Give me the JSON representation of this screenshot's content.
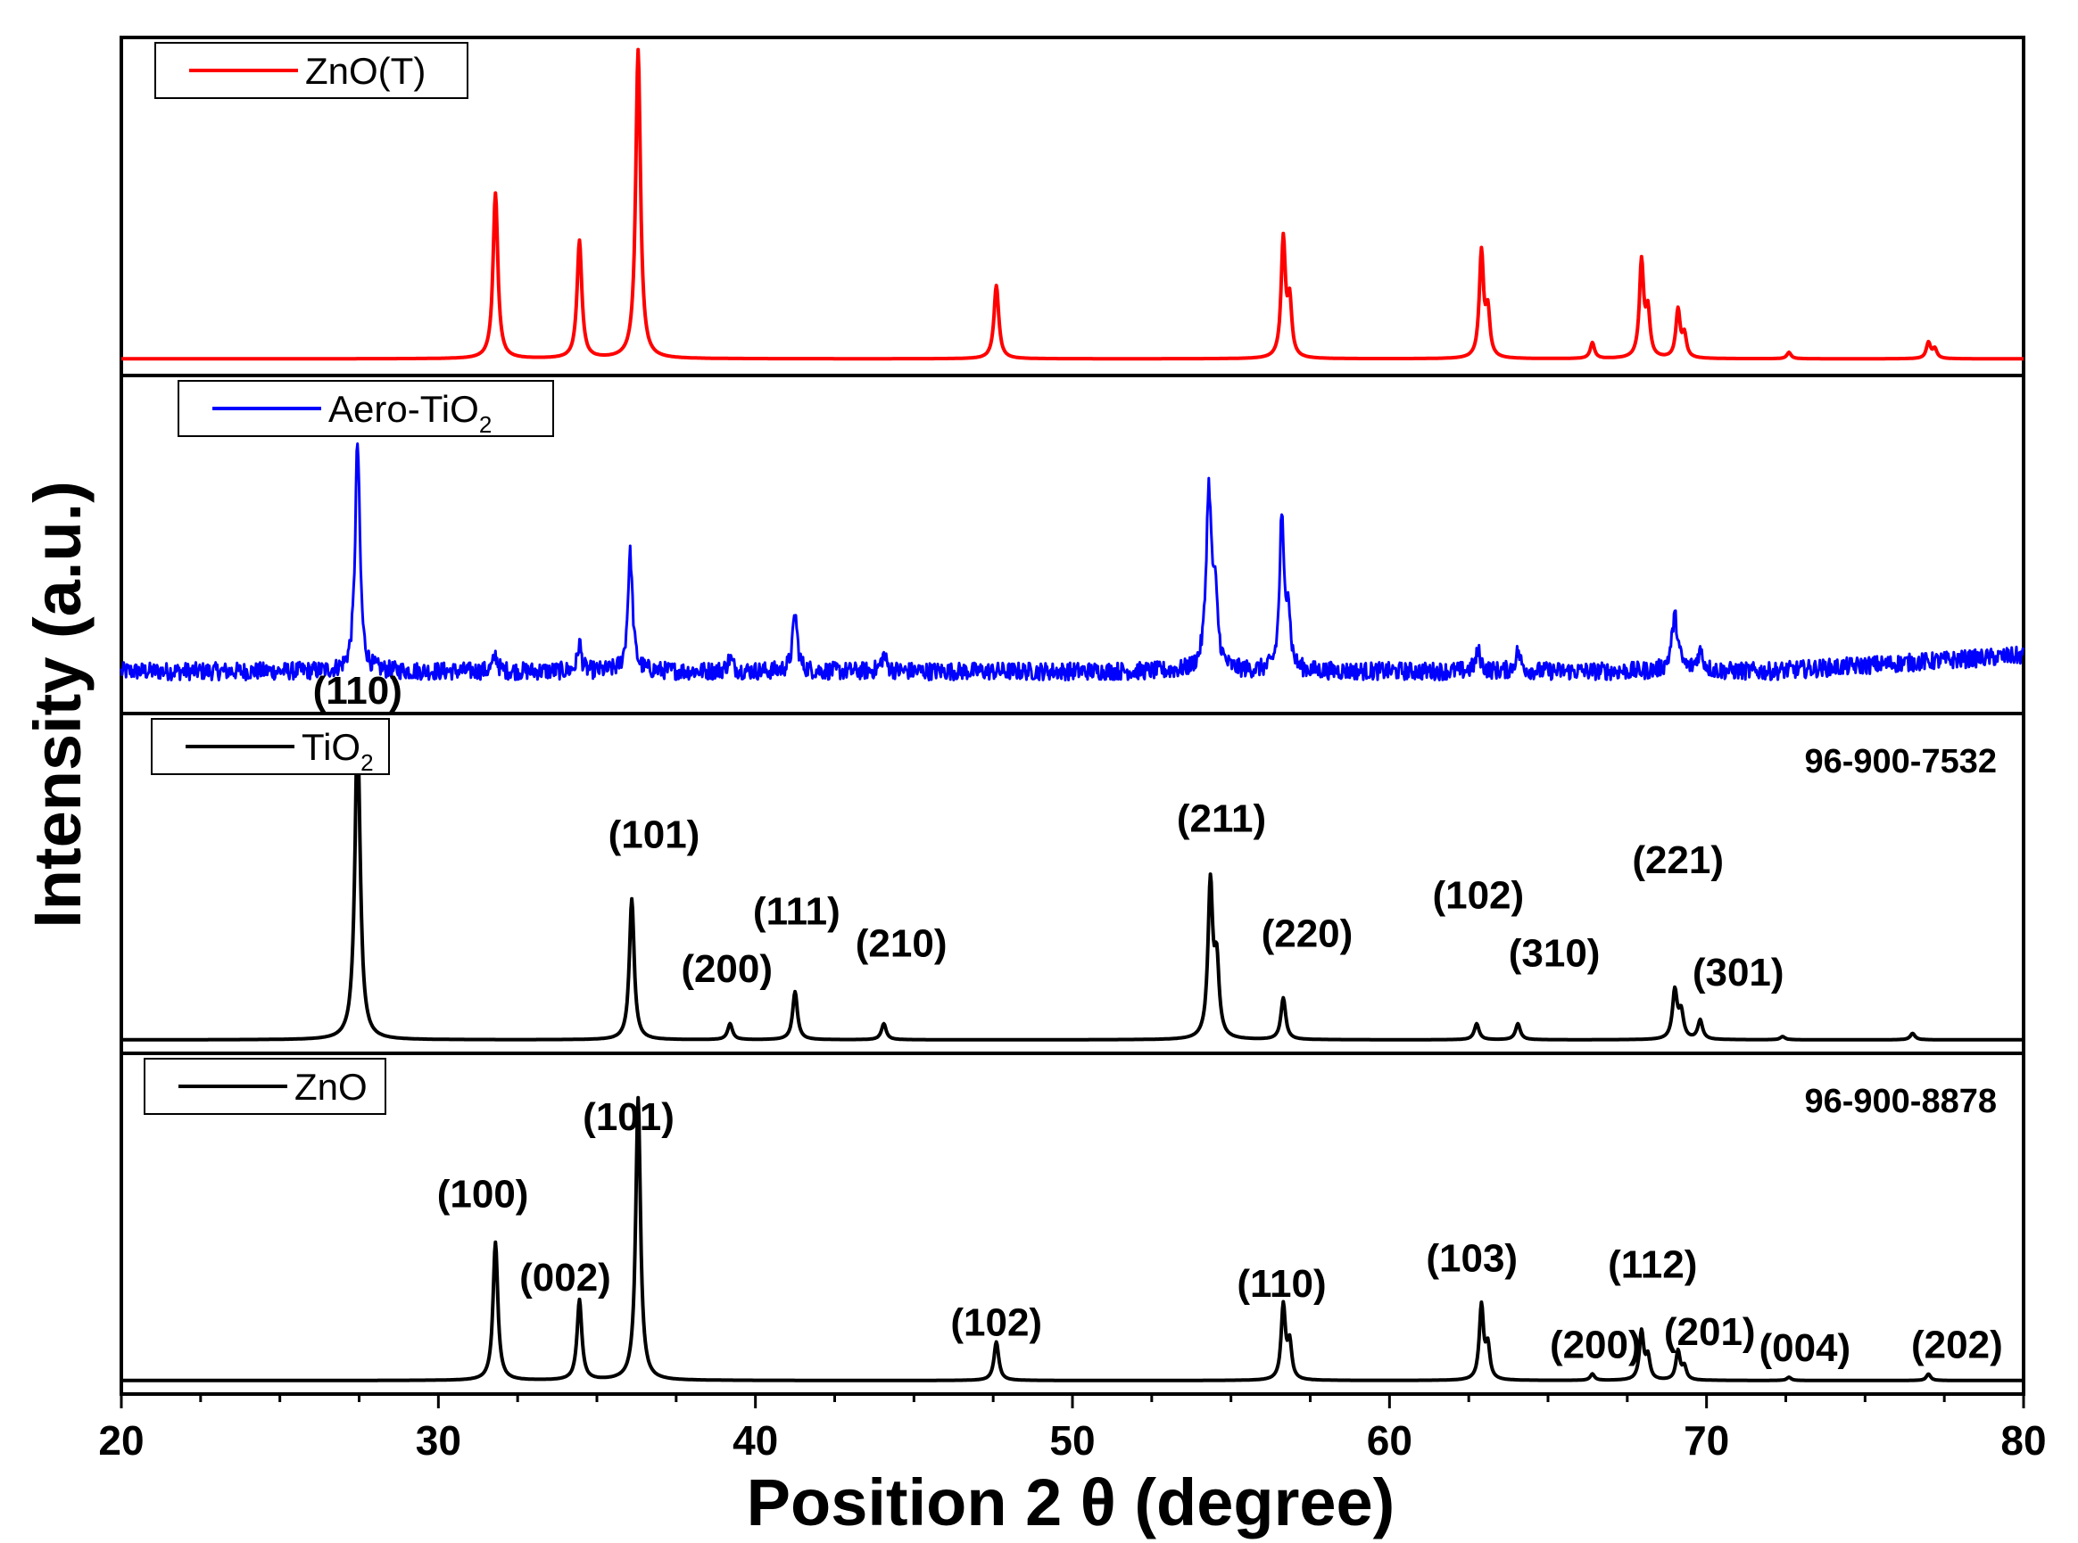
{
  "chart_data": {
    "type": "line",
    "title": "",
    "xlabel": "Position 2 θ (degree)",
    "ylabel": "Intensity (a.u.)",
    "xlim": [
      20,
      80
    ],
    "x_ticks": [
      20,
      30,
      40,
      50,
      60,
      70,
      80
    ],
    "x_minor_step": 2.5,
    "grid": false,
    "y_ticks_shown": false,
    "panels": [
      {
        "name": "ZnO(T)",
        "legend": "ZnO(T)",
        "color": "#ff0000",
        "reference_code": "",
        "noise": 0,
        "baseline": 0.03,
        "peaks": [
          {
            "x": 31.8,
            "h": 0.52,
            "w": 0.09
          },
          {
            "x": 34.45,
            "h": 0.37,
            "w": 0.09
          },
          {
            "x": 36.3,
            "h": 0.97,
            "w": 0.09
          },
          {
            "x": 47.6,
            "h": 0.23,
            "w": 0.09
          },
          {
            "x": 56.65,
            "h": 0.37,
            "w": 0.08
          },
          {
            "x": 56.85,
            "h": 0.17,
            "w": 0.08
          },
          {
            "x": 62.9,
            "h": 0.33,
            "w": 0.08
          },
          {
            "x": 63.1,
            "h": 0.14,
            "w": 0.08
          },
          {
            "x": 66.4,
            "h": 0.05,
            "w": 0.08
          },
          {
            "x": 67.95,
            "h": 0.3,
            "w": 0.08
          },
          {
            "x": 68.15,
            "h": 0.14,
            "w": 0.08
          },
          {
            "x": 69.1,
            "h": 0.15,
            "w": 0.08
          },
          {
            "x": 69.3,
            "h": 0.07,
            "w": 0.08
          },
          {
            "x": 72.6,
            "h": 0.02,
            "w": 0.08
          },
          {
            "x": 77.0,
            "h": 0.05,
            "w": 0.08
          },
          {
            "x": 77.2,
            "h": 0.03,
            "w": 0.08
          }
        ],
        "hkl_labels": []
      },
      {
        "name": "Aero-TiO2",
        "legend": "Aero-TiO",
        "legend_sub": "2",
        "color": "#0000ff",
        "reference_code": "",
        "noise": 0.028,
        "baseline": 0.11,
        "baseline_end": 0.16,
        "peaks": [
          {
            "x": 27.45,
            "h": 0.72,
            "w": 0.09
          },
          {
            "x": 31.8,
            "h": 0.05,
            "w": 0.08
          },
          {
            "x": 34.45,
            "h": 0.09,
            "w": 0.07
          },
          {
            "x": 36.05,
            "h": 0.37,
            "w": 0.09
          },
          {
            "x": 39.2,
            "h": 0.04,
            "w": 0.1
          },
          {
            "x": 41.25,
            "h": 0.18,
            "w": 0.09
          },
          {
            "x": 44.05,
            "h": 0.05,
            "w": 0.1
          },
          {
            "x": 54.3,
            "h": 0.55,
            "w": 0.1
          },
          {
            "x": 54.5,
            "h": 0.2,
            "w": 0.1
          },
          {
            "x": 56.6,
            "h": 0.47,
            "w": 0.08
          },
          {
            "x": 56.8,
            "h": 0.2,
            "w": 0.08
          },
          {
            "x": 62.8,
            "h": 0.06,
            "w": 0.1
          },
          {
            "x": 64.05,
            "h": 0.06,
            "w": 0.1
          },
          {
            "x": 69.0,
            "h": 0.17,
            "w": 0.12
          },
          {
            "x": 69.8,
            "h": 0.06,
            "w": 0.12
          }
        ],
        "hkl_labels": []
      },
      {
        "name": "TiO2",
        "legend": "TiO",
        "legend_sub": "2",
        "color": "#000000",
        "reference_code": "96-900-7532",
        "noise": 0,
        "baseline": 0.02,
        "peaks": [
          {
            "x": 27.45,
            "h": 0.98,
            "w": 0.1
          },
          {
            "x": 36.1,
            "h": 0.44,
            "w": 0.09
          },
          {
            "x": 39.2,
            "h": 0.05,
            "w": 0.09
          },
          {
            "x": 41.25,
            "h": 0.15,
            "w": 0.09
          },
          {
            "x": 44.05,
            "h": 0.05,
            "w": 0.09
          },
          {
            "x": 54.35,
            "h": 0.48,
            "w": 0.09
          },
          {
            "x": 54.55,
            "h": 0.22,
            "w": 0.09
          },
          {
            "x": 56.65,
            "h": 0.13,
            "w": 0.09
          },
          {
            "x": 62.75,
            "h": 0.05,
            "w": 0.09
          },
          {
            "x": 64.05,
            "h": 0.05,
            "w": 0.09
          },
          {
            "x": 69.0,
            "h": 0.15,
            "w": 0.09
          },
          {
            "x": 69.2,
            "h": 0.08,
            "w": 0.09
          },
          {
            "x": 69.8,
            "h": 0.06,
            "w": 0.09
          },
          {
            "x": 72.4,
            "h": 0.01,
            "w": 0.09
          },
          {
            "x": 76.5,
            "h": 0.02,
            "w": 0.09
          }
        ],
        "hkl_labels": [
          {
            "text": "(110)",
            "x": 27.45,
            "h": 1.07
          },
          {
            "text": "(101)",
            "x": 36.8,
            "h": 0.62
          },
          {
            "text": "(200)",
            "x": 39.1,
            "h": 0.2
          },
          {
            "text": "(111)",
            "x": 41.3,
            "h": 0.38
          },
          {
            "text": "(210)",
            "x": 44.6,
            "h": 0.28
          },
          {
            "text": "(211)",
            "x": 54.7,
            "h": 0.67
          },
          {
            "text": "(220)",
            "x": 57.4,
            "h": 0.31
          },
          {
            "text": "(102)",
            "x": 62.8,
            "h": 0.43
          },
          {
            "text": "(310)",
            "x": 65.2,
            "h": 0.25
          },
          {
            "text": "(221)",
            "x": 69.1,
            "h": 0.54
          },
          {
            "text": "(301)",
            "x": 71.0,
            "h": 0.19
          }
        ]
      },
      {
        "name": "ZnO",
        "legend": "ZnO",
        "color": "#000000",
        "reference_code": "96-900-8878",
        "noise": 0,
        "baseline": 0.02,
        "peaks": [
          {
            "x": 31.8,
            "h": 0.43,
            "w": 0.09
          },
          {
            "x": 34.45,
            "h": 0.25,
            "w": 0.09
          },
          {
            "x": 36.3,
            "h": 0.88,
            "w": 0.09
          },
          {
            "x": 47.6,
            "h": 0.12,
            "w": 0.09
          },
          {
            "x": 56.65,
            "h": 0.23,
            "w": 0.08
          },
          {
            "x": 56.85,
            "h": 0.11,
            "w": 0.08
          },
          {
            "x": 62.9,
            "h": 0.23,
            "w": 0.08
          },
          {
            "x": 63.1,
            "h": 0.1,
            "w": 0.08
          },
          {
            "x": 66.4,
            "h": 0.02,
            "w": 0.08
          },
          {
            "x": 67.95,
            "h": 0.15,
            "w": 0.08
          },
          {
            "x": 68.15,
            "h": 0.07,
            "w": 0.08
          },
          {
            "x": 69.1,
            "h": 0.09,
            "w": 0.08
          },
          {
            "x": 69.3,
            "h": 0.04,
            "w": 0.08
          },
          {
            "x": 72.6,
            "h": 0.01,
            "w": 0.08
          },
          {
            "x": 77.0,
            "h": 0.02,
            "w": 0.08
          }
        ],
        "hkl_labels": [
          {
            "text": "(100)",
            "x": 31.4,
            "h": 0.56
          },
          {
            "text": "(002)",
            "x": 34.0,
            "h": 0.3
          },
          {
            "text": "(101)",
            "x": 36.0,
            "h": 0.8
          },
          {
            "text": "(102)",
            "x": 47.6,
            "h": 0.16
          },
          {
            "text": "(110)",
            "x": 56.6,
            "h": 0.28
          },
          {
            "text": "(103)",
            "x": 62.6,
            "h": 0.36
          },
          {
            "text": "(200)",
            "x": 66.5,
            "h": 0.09
          },
          {
            "text": "(112)",
            "x": 68.3,
            "h": 0.34
          },
          {
            "text": "(201)",
            "x": 70.1,
            "h": 0.13
          },
          {
            "text": "(004)",
            "x": 73.1,
            "h": 0.08
          },
          {
            "text": "(202)",
            "x": 77.9,
            "h": 0.09
          }
        ]
      }
    ]
  }
}
